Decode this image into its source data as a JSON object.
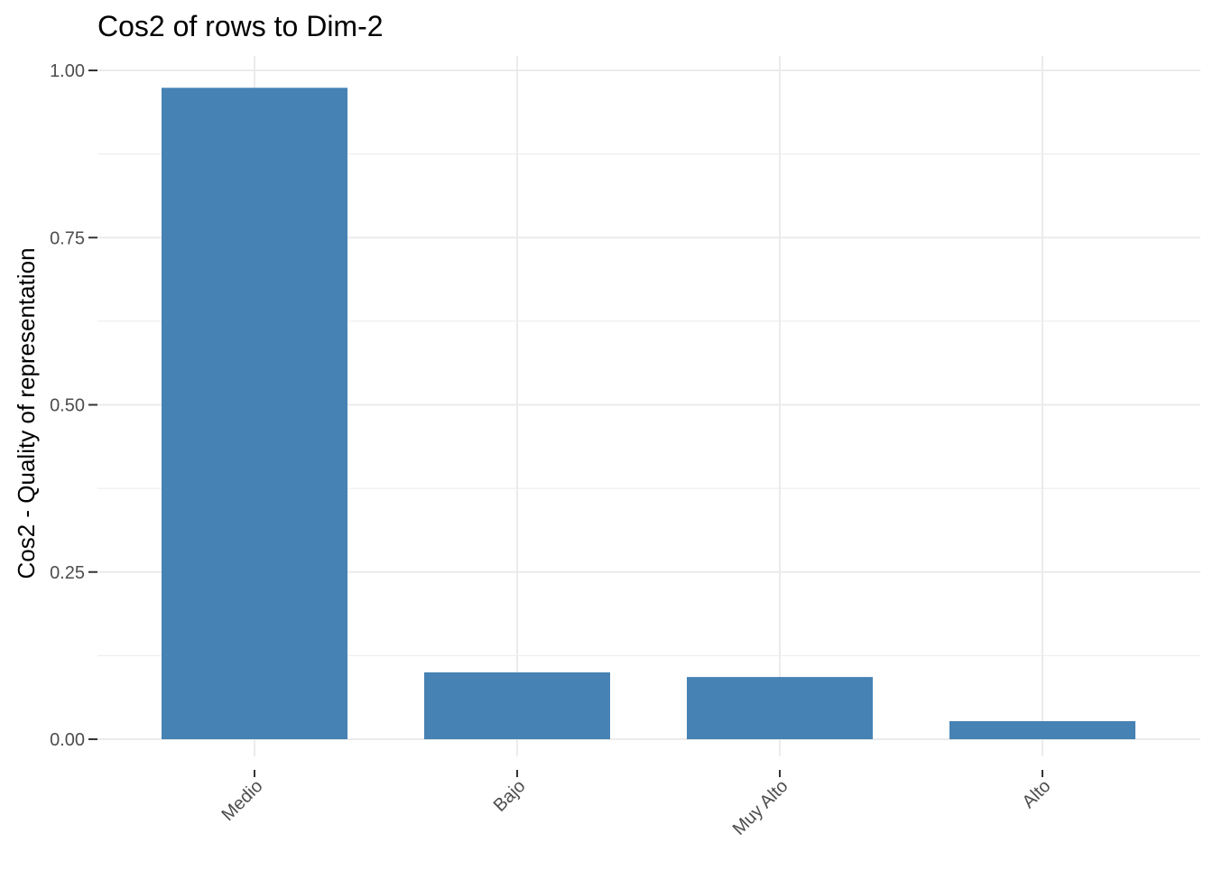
{
  "chart_data": {
    "type": "bar",
    "title": "Cos2 of rows to Dim-2",
    "xlabel": "",
    "ylabel": "Cos2 - Quality of representation",
    "categories": [
      "Medio",
      "Bajo",
      "Muy Alto",
      "Alto"
    ],
    "values": [
      0.974,
      0.1,
      0.093,
      0.027
    ],
    "ylim": [
      0,
      1
    ],
    "yticks": [
      "0.00",
      "0.25",
      "0.50",
      "0.75",
      "1.00"
    ],
    "grid": true,
    "bar_color": "#4682B4",
    "grid_color": "#EBEBEB"
  }
}
